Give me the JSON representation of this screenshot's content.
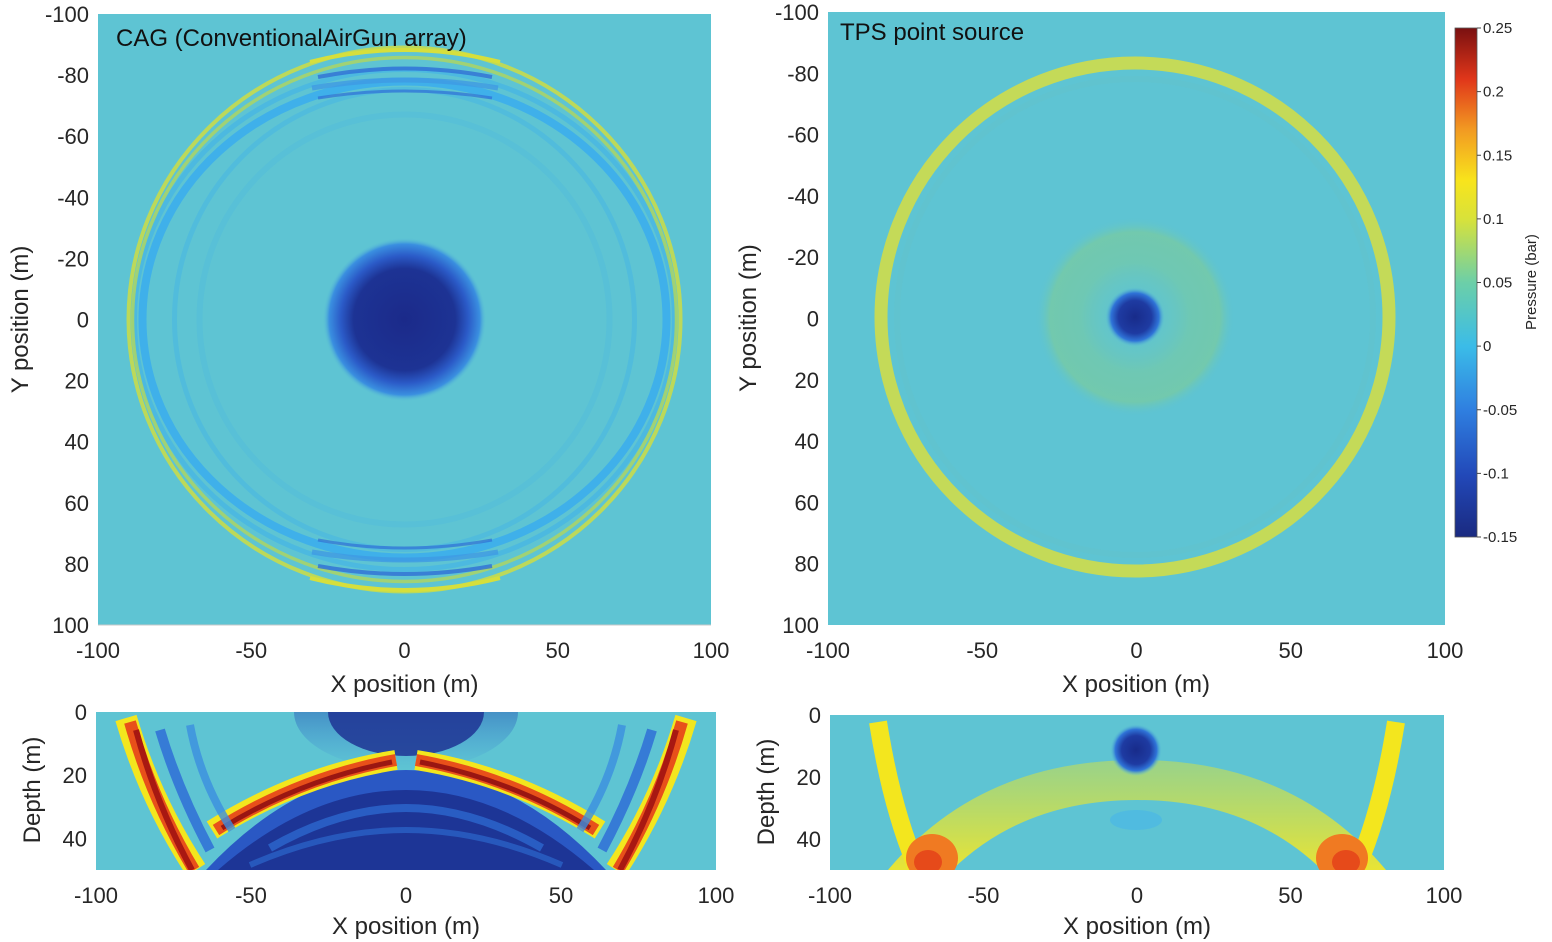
{
  "figure": {
    "colors": {
      "background": "#5ec4d3",
      "neg_weak": "#3bb3ea",
      "neg_mid": "#2f6fd6",
      "neg_strong": "#1b2f96",
      "pos_weak": "#8fcf7a",
      "pos_mid": "#cfe04a",
      "pos_yellow": "#f2e81e",
      "pos_orange": "#f07a22",
      "pos_red": "#c81e14",
      "pos_dark": "#7a1010"
    }
  },
  "chart_data": [
    {
      "id": "cag_plan",
      "type": "heatmap",
      "title": "CAG (ConventionalAirGun array)",
      "xlabel": "X position (m)",
      "ylabel": "Y position (m)",
      "xlim": [
        -100,
        100
      ],
      "ylim": [
        -100,
        100
      ],
      "y_reversed": true,
      "xticks": [
        -100,
        -50,
        0,
        50,
        100
      ],
      "yticks": [
        -100,
        -80,
        -60,
        -40,
        -20,
        0,
        20,
        40,
        60,
        80,
        100
      ],
      "xtick_labels": [
        "-100",
        "-50",
        "0",
        "50",
        "100"
      ],
      "ytick_labels": [
        "-100",
        "-80",
        "-60",
        "-40",
        "-20",
        "0",
        "20",
        "40",
        "60",
        "80",
        "100"
      ],
      "features": [
        {
          "name": "central low-pressure disc",
          "center": [
            0,
            0
          ],
          "radius_m": 15,
          "pressure_bar": -0.15
        },
        {
          "name": "outer positive wavefront ring",
          "center": [
            0,
            0
          ],
          "radius_m": 90,
          "pressure_bar": 0.05
        },
        {
          "name": "inner negative ring",
          "center": [
            0,
            0
          ],
          "radius_m": 80,
          "pressure_bar": -0.03
        }
      ]
    },
    {
      "id": "tps_plan",
      "type": "heatmap",
      "title": "TPS point source",
      "xlabel": "X position (m)",
      "ylabel": "Y position (m)",
      "xlim": [
        -100,
        100
      ],
      "ylim": [
        -100,
        100
      ],
      "y_reversed": true,
      "xticks": [
        -100,
        -50,
        0,
        50,
        100
      ],
      "yticks": [
        -100,
        -80,
        -60,
        -40,
        -20,
        0,
        20,
        40,
        60,
        80,
        100
      ],
      "xtick_labels": [
        "-100",
        "-50",
        "0",
        "50",
        "100"
      ],
      "ytick_labels": [
        "-100",
        "-80",
        "-60",
        "-40",
        "-20",
        "0",
        "20",
        "40",
        "60",
        "80",
        "100"
      ],
      "features": [
        {
          "name": "central low-pressure spot",
          "center": [
            0,
            0
          ],
          "radius_m": 7,
          "pressure_bar": -0.12
        },
        {
          "name": "inner weak positive halo",
          "center": [
            0,
            0
          ],
          "radius_m": 30,
          "pressure_bar": 0.02
        },
        {
          "name": "outer positive wavefront ring",
          "center": [
            0,
            0
          ],
          "radius_m": 84,
          "pressure_bar": 0.07
        }
      ]
    },
    {
      "id": "cag_depth",
      "type": "heatmap",
      "title": "",
      "xlabel": "X position (m)",
      "ylabel": "Depth (m)",
      "xlim": [
        -100,
        100
      ],
      "ylim": [
        0,
        50
      ],
      "y_reversed": true,
      "xticks": [
        -100,
        -50,
        0,
        50,
        100
      ],
      "yticks": [
        0,
        20,
        40
      ],
      "xtick_labels": [
        "-100",
        "-50",
        "0",
        "50",
        "100"
      ],
      "ytick_labels": [
        "0",
        "20",
        "40"
      ]
    },
    {
      "id": "tps_depth",
      "type": "heatmap",
      "title": "",
      "xlabel": "X position (m)",
      "ylabel": "Depth (m)",
      "xlim": [
        -100,
        100
      ],
      "ylim": [
        0,
        50
      ],
      "y_reversed": true,
      "xticks": [
        -100,
        -50,
        0,
        50,
        100
      ],
      "yticks": [
        0,
        20,
        40
      ],
      "xtick_labels": [
        "-100",
        "-50",
        "0",
        "50",
        "100"
      ],
      "ytick_labels": [
        "0",
        "20",
        "40"
      ]
    }
  ],
  "colorbar": {
    "label": "Pressure (bar)",
    "range": [
      -0.15,
      0.25
    ],
    "ticks": [
      0.25,
      0.2,
      0.15,
      0.1,
      0.05,
      0,
      -0.05,
      -0.1,
      -0.15
    ],
    "tick_labels": [
      "0.25",
      "0.2",
      "0.15",
      "0.1",
      "0.05",
      "0",
      "-0.05",
      "-0.1",
      "-0.15"
    ]
  }
}
